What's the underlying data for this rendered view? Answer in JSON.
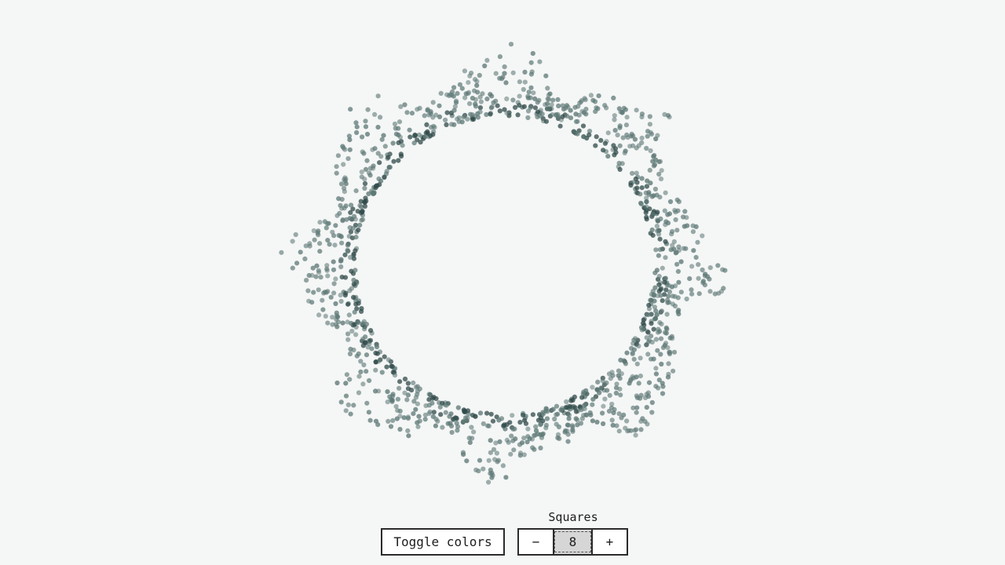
{
  "visualization": {
    "dot_color": "#5f7a77",
    "dot_dark_color": "#2f4a48",
    "background": "#f5f6f6"
  },
  "controls": {
    "toggle_label": "Toggle colors",
    "stepper_title": "Squares",
    "stepper_value": "8",
    "decrement_label": "−",
    "increment_label": "+"
  }
}
